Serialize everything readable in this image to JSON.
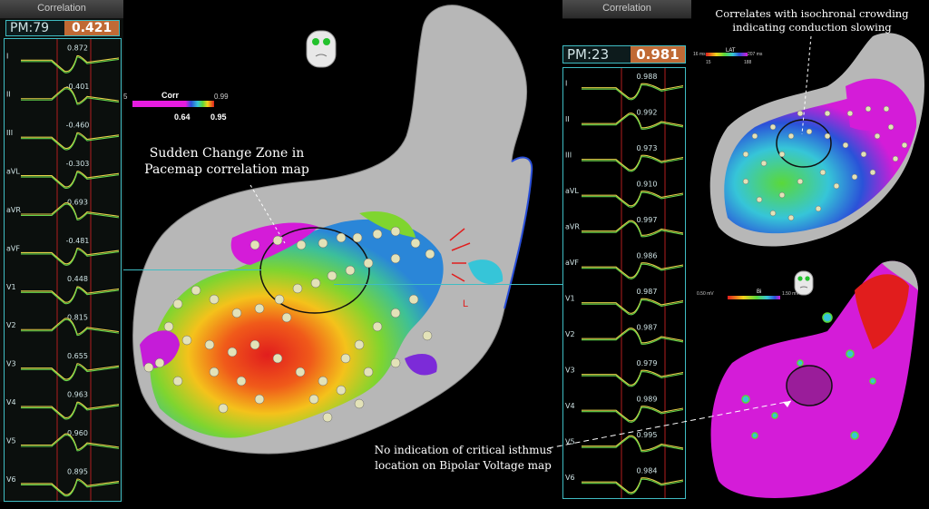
{
  "left_panel": {
    "title": "Correlation",
    "pm_label": "PM:79",
    "pm_value": "0.421",
    "leads": [
      "I",
      "II",
      "III",
      "aVL",
      "aVR",
      "aVF",
      "V1",
      "V2",
      "V3",
      "V4",
      "V5",
      "V6"
    ],
    "correlations": [
      "0.872",
      "-0.401",
      "-0.460",
      "-0.303",
      "0.693",
      "-0.481",
      "0.448",
      "0.815",
      "0.655",
      "0.963",
      "0.960",
      "0.895"
    ]
  },
  "middle_map": {
    "legend_title": "Corr",
    "legend_min": "5",
    "legend_max": "0.99",
    "legend_low_marker": "0.64",
    "legend_high_marker": "0.95",
    "annotation_label": "L",
    "sudden_change_label": "Sudden Change Zone in Pacemap correlation map"
  },
  "right_ecg_panel": {
    "title": "Correlation",
    "pm_label": "PM:23",
    "pm_value": "0.981",
    "leads": [
      "I",
      "II",
      "III",
      "aVL",
      "aVR",
      "aVF",
      "V1",
      "V2",
      "V3",
      "V4",
      "V5",
      "V6"
    ],
    "correlations": [
      "0.988",
      "0.992",
      "0.973",
      "0.910",
      "0.997",
      "0.986",
      "0.987",
      "0.987",
      "0.979",
      "0.989",
      "0.995",
      "0.984"
    ]
  },
  "top_right_map": {
    "caption": "Correlates with isochronal crowding indicating conduction slowing",
    "legend_title": "LAT",
    "legend_tick_left": "16 ms",
    "legend_tick_right": "207 ms",
    "legend_low": "15",
    "legend_high": "188"
  },
  "bottom_right_map": {
    "legend_left": "0.50 mV",
    "legend_title": "Bi",
    "legend_right": "1.50 mV"
  },
  "bottom_annotation": "No indication of critical isthmus location on Bipolar Voltage map",
  "colors": {
    "accent_cyan": "#3fbcc3",
    "pm_value_bg": "#c06a35",
    "trace_yellow": "#e6d24a",
    "trace_green": "#63d64b",
    "marker_red": "#b21e1e"
  }
}
